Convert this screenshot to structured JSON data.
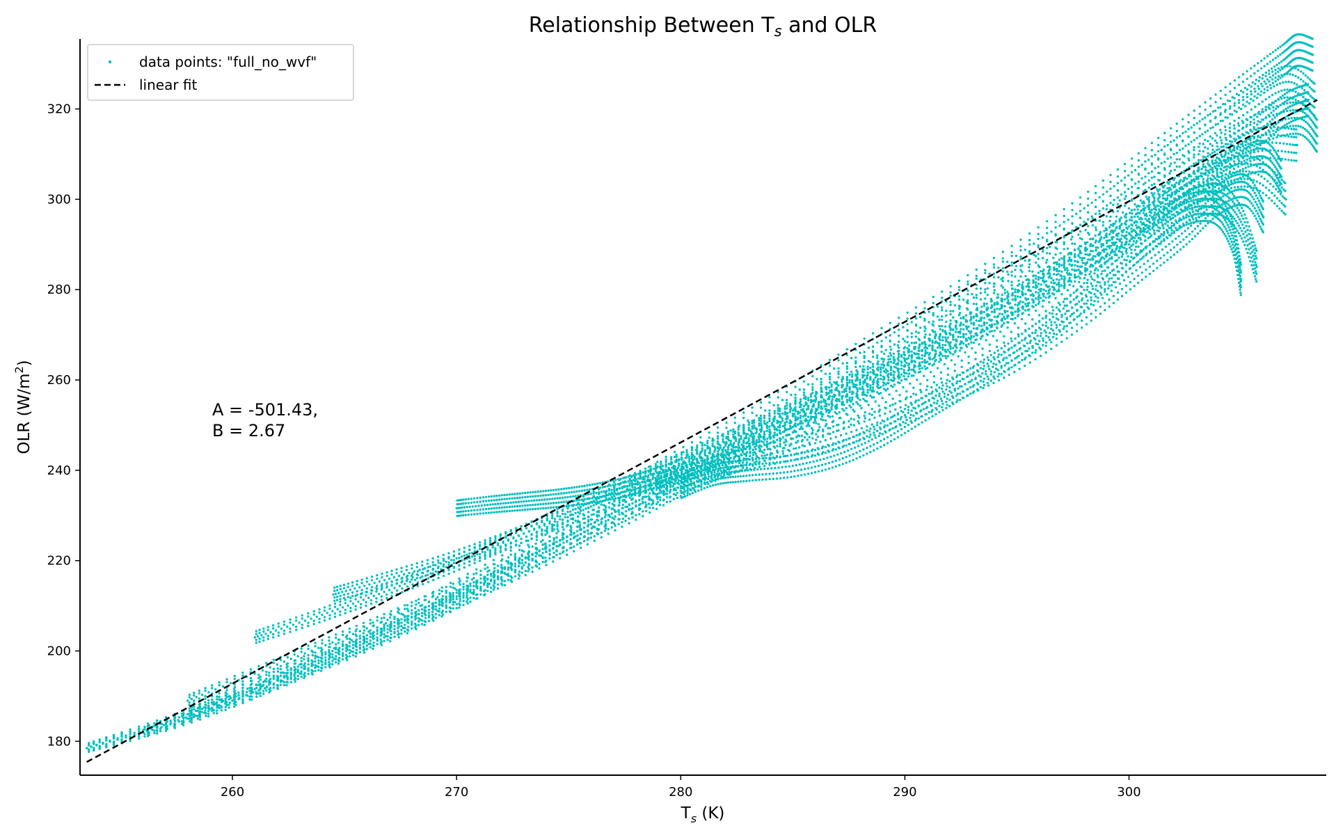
{
  "chart_data": {
    "type": "scatter",
    "title": {
      "main": "Relationship Between T",
      "sub": "s",
      "rest": " and OLR"
    },
    "xlabel": {
      "main": "T",
      "sub": "s",
      "rest": " (K)"
    },
    "ylabel": {
      "main": "OLR (W/m",
      "sup": "2",
      "rest": ")"
    },
    "xlim": [
      253.2,
      308.8
    ],
    "ylim": [
      172.5,
      335.5
    ],
    "xticks": [
      260,
      270,
      280,
      290,
      300
    ],
    "yticks": [
      180,
      200,
      220,
      240,
      260,
      280,
      300,
      320
    ],
    "grid": false,
    "legend": {
      "placement": "top-left",
      "entries": [
        {
          "label": "data points: \"full_no_wvf\"",
          "marker": "dot",
          "color": "#00bfbf"
        },
        {
          "label": "linear fit",
          "marker": "dashed-line",
          "color": "#000000"
        }
      ]
    },
    "annotation": {
      "line1": "A = -501.43,",
      "line2": "B = 2.67"
    },
    "fit": {
      "A": -501.43,
      "B": 2.67,
      "x_range": [
        253.5,
        308.4
      ]
    },
    "series": [
      {
        "name": "data points: \"full_no_wvf\"",
        "color": "#00bfbf",
        "curves": [
          {
            "x": [
              253.5,
              258.0,
              263.0,
              268.0,
              273.0,
              278.0,
              283.0,
              288.0,
              293.0,
              298.0,
              302.0,
              305.0,
              306.8,
              307.5,
              308.2
            ],
            "y": [
              178.5,
              186.0,
              197.0,
              209.0,
              222.0,
              237.0,
              251.0,
              266.0,
              281.0,
              298.0,
              313.0,
              324.0,
              330.5,
              333.0,
              332.0
            ]
          },
          {
            "x": [
              253.5,
              258.0,
              263.0,
              268.0,
              273.0,
              278.0,
              283.0,
              288.0,
              293.0,
              298.0,
              302.0,
              305.0,
              307.0,
              308.3
            ],
            "y": [
              178.5,
              185.0,
              195.0,
              206.0,
              219.0,
              233.0,
              248.0,
              263.0,
              279.0,
              295.0,
              310.0,
              320.0,
              326.0,
              322.0
            ]
          },
          {
            "x": [
              256.0,
              260.0,
              264.0,
              268.0,
              272.0,
              276.0,
              280.0,
              284.0,
              288.0,
              292.0,
              296.0,
              300.0,
              303.0,
              305.5,
              307.5,
              308.4
            ],
            "y": [
              182.0,
              189.0,
              197.5,
              206.5,
              216.0,
              226.0,
              236.5,
              248.0,
              260.0,
              272.0,
              285.0,
              298.0,
              308.0,
              315.0,
              318.0,
              314.0
            ]
          },
          {
            "x": [
              258.0,
              262.0,
              266.0,
              270.0,
              274.0,
              278.0,
              282.0,
              286.0,
              290.0,
              294.0,
              298.0,
              301.0,
              303.5,
              305.5,
              307.0
            ],
            "y": [
              186.0,
              193.5,
              202.0,
              211.5,
              222.0,
              232.0,
              241.0,
              251.0,
              263.0,
              275.0,
              287.0,
              297.0,
              304.0,
              306.0,
              300.0
            ]
          },
          {
            "x": [
              258.0,
              262.0,
              266.0,
              270.0,
              274.0,
              278.0,
              281.5,
              285.0,
              289.0,
              293.0,
              297.0,
              300.0,
              302.5,
              304.0,
              305.0,
              305.7
            ],
            "y": [
              189.0,
              197.0,
              205.0,
              213.5,
              223.0,
              233.0,
              240.0,
              247.0,
              256.0,
              267.0,
              279.0,
              290.0,
              298.0,
              300.0,
              295.0,
              285.0
            ]
          },
          {
            "x": [
              280.0,
              281.5,
              283.0,
              285.0,
              287.0,
              289.0,
              291.0,
              293.0,
              295.0,
              297.0,
              299.0,
              301.0,
              302.5,
              303.8,
              304.6,
              305.0
            ],
            "y": [
              236.0,
              239.0,
              240.0,
              241.0,
              243.5,
              248.0,
              254.0,
              260.0,
              266.5,
              274.0,
              283.0,
              292.0,
              297.5,
              298.0,
              292.0,
              282.0
            ]
          },
          {
            "x": [
              279.0,
              281.0,
              283.0,
              286.0,
              289.0,
              292.0,
              295.0,
              298.0,
              300.5,
              302.5,
              304.0,
              305.2,
              306.0
            ],
            "y": [
              237.0,
              240.0,
              242.5,
              246.0,
              251.0,
              257.5,
              265.0,
              275.0,
              285.0,
              293.0,
              300.0,
              302.0,
              296.0
            ]
          },
          {
            "x": [
              264.5,
              267.0,
              270.0,
              273.0,
              276.0,
              279.0,
              282.0,
              285.0,
              288.0,
              291.0,
              294.0,
              297.0,
              300.0,
              302.5,
              304.5,
              306.0,
              306.8
            ],
            "y": [
              212.5,
              216.0,
              220.5,
              226.0,
              232.0,
              239.0,
              245.5,
              252.0,
              259.0,
              266.0,
              274.0,
              283.0,
              292.5,
              301.0,
              307.0,
              309.5,
              305.0
            ]
          },
          {
            "x": [
              261.0,
              264.0,
              267.0,
              270.0,
              273.0,
              276.0,
              279.0,
              282.0,
              285.0,
              288.0,
              291.0,
              294.0,
              297.0,
              300.0,
              303.0,
              305.5,
              307.5
            ],
            "y": [
              203.0,
              208.0,
              213.5,
              219.5,
              226.0,
              233.0,
              239.5,
              246.0,
              252.5,
              259.5,
              267.0,
              275.0,
              284.0,
              294.0,
              304.5,
              312.0,
              312.0
            ]
          },
          {
            "x": [
              270.0,
              271.5,
              273.0,
              274.5,
              276.0,
              277.5,
              279.0,
              281.0,
              284.0,
              288.0,
              292.0,
              296.0,
              300.0,
              303.0,
              305.5,
              307.0,
              308.0
            ],
            "y": [
              231.6,
              232.4,
              233.1,
              233.8,
              234.8,
              236.3,
              238.5,
              242.0,
              248.5,
              258.0,
              268.0,
              280.0,
              294.0,
              305.0,
              314.0,
              320.0,
              322.0
            ]
          }
        ]
      }
    ]
  }
}
